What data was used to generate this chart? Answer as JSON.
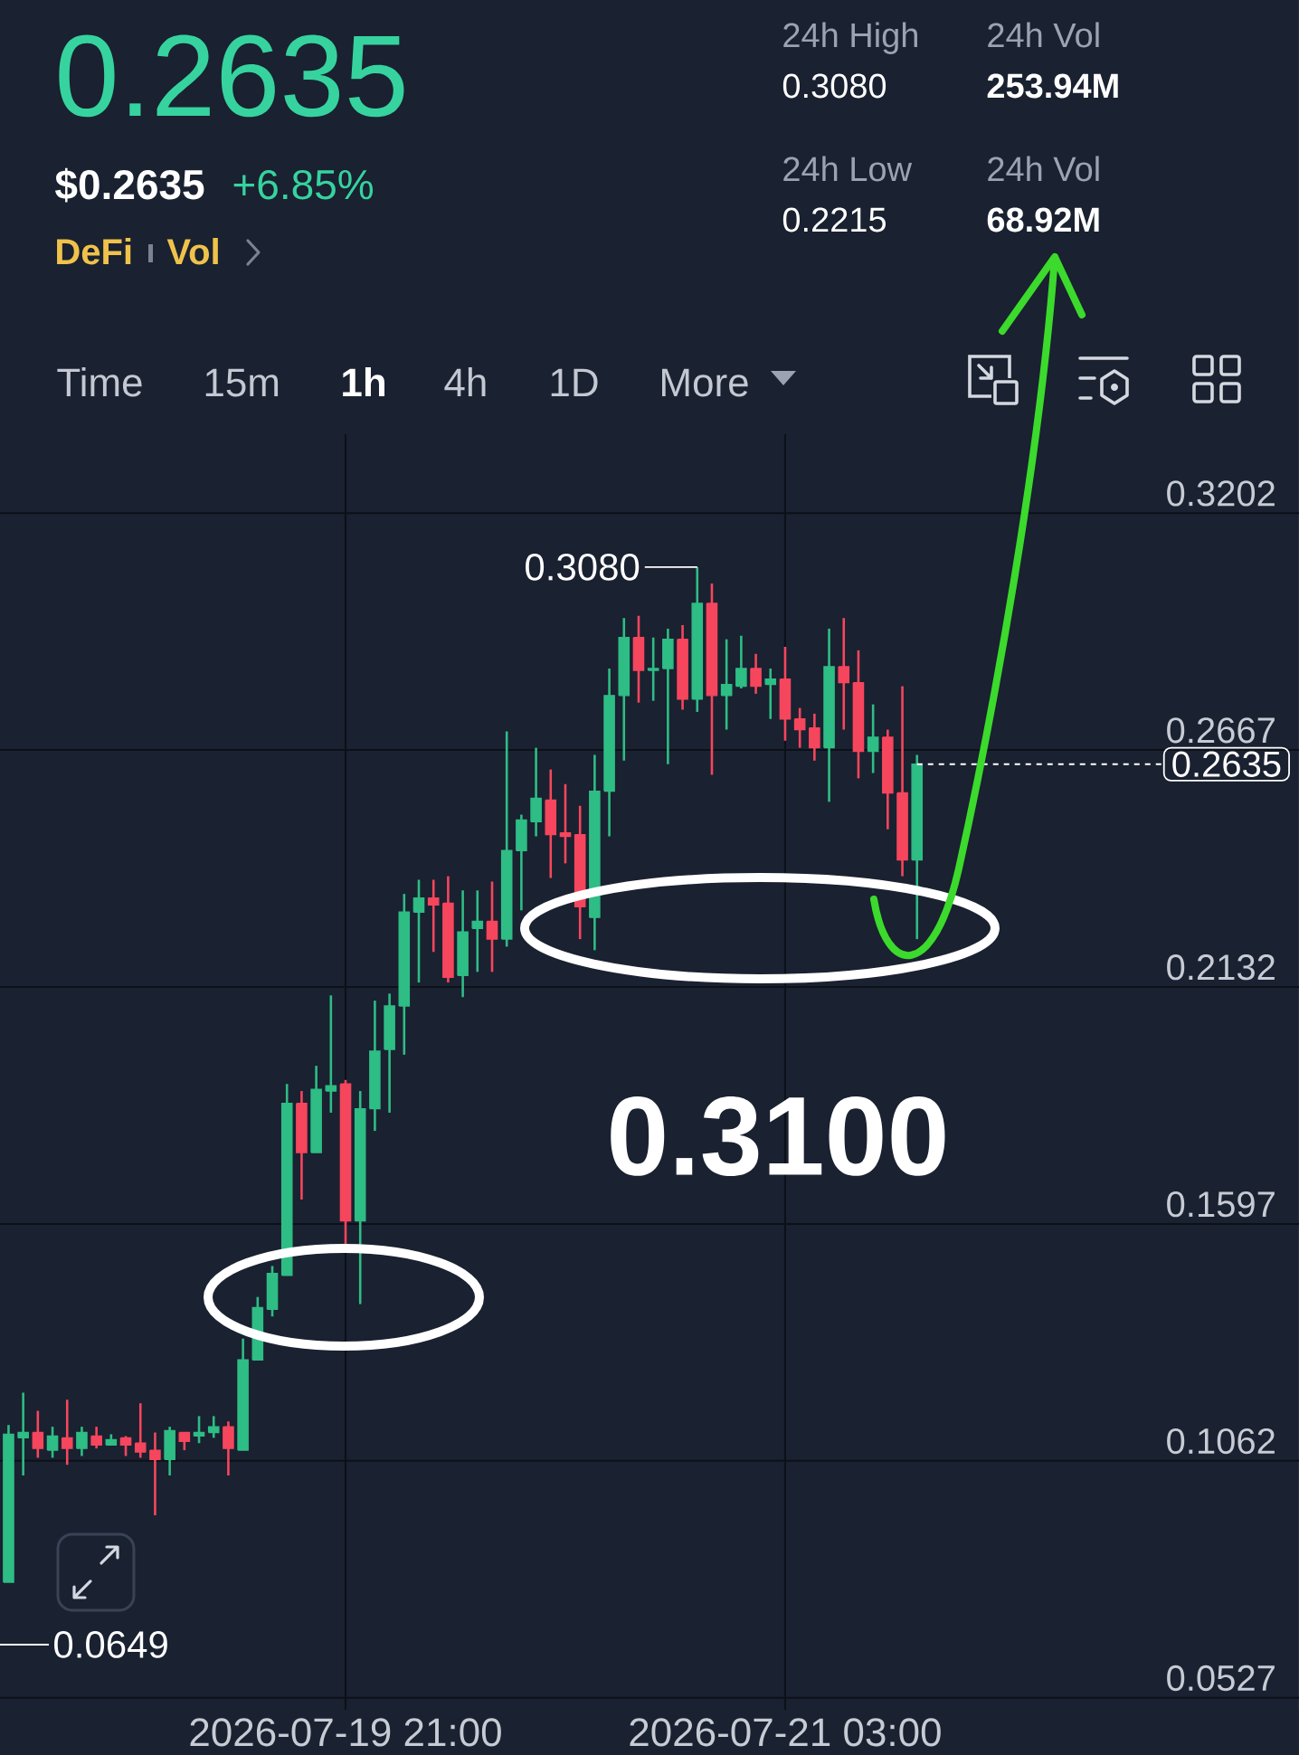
{
  "chart_data": {
    "type": "candlestick",
    "title": "0.2635",
    "x": [
      "2026-07-18T22:00",
      "2026-07-18T23:00",
      "2026-07-19T00:00",
      "2026-07-19T01:00",
      "2026-07-19T02:00",
      "2026-07-19T03:00",
      "2026-07-19T04:00",
      "2026-07-19T05:00",
      "2026-07-19T06:00",
      "2026-07-19T07:00",
      "2026-07-19T08:00",
      "2026-07-19T09:00",
      "2026-07-19T10:00",
      "2026-07-19T11:00",
      "2026-07-19T12:00",
      "2026-07-19T13:00",
      "2026-07-19T14:00",
      "2026-07-19T15:00",
      "2026-07-19T16:00",
      "2026-07-19T17:00",
      "2026-07-19T18:00",
      "2026-07-19T19:00",
      "2026-07-19T20:00",
      "2026-07-19T21:00",
      "2026-07-19T22:00",
      "2026-07-19T23:00",
      "2026-07-20T00:00",
      "2026-07-20T01:00",
      "2026-07-20T02:00",
      "2026-07-20T03:00",
      "2026-07-20T04:00",
      "2026-07-20T05:00",
      "2026-07-20T06:00",
      "2026-07-20T07:00",
      "2026-07-20T08:00",
      "2026-07-20T09:00",
      "2026-07-20T10:00",
      "2026-07-20T11:00",
      "2026-07-20T12:00",
      "2026-07-20T13:00",
      "2026-07-20T14:00",
      "2026-07-20T15:00",
      "2026-07-20T16:00",
      "2026-07-20T17:00",
      "2026-07-20T18:00",
      "2026-07-20T19:00",
      "2026-07-20T20:00",
      "2026-07-20T21:00",
      "2026-07-20T22:00",
      "2026-07-20T23:00",
      "2026-07-21T00:00",
      "2026-07-21T01:00",
      "2026-07-21T02:00",
      "2026-07-21T03:00",
      "2026-07-21T04:00",
      "2026-07-21T05:00",
      "2026-07-21T06:00",
      "2026-07-21T07:00",
      "2026-07-21T08:00",
      "2026-07-21T09:00",
      "2026-07-21T10:00",
      "2026-07-21T11:00",
      "2026-07-21T12:00"
    ],
    "ohlc": [
      [
        0.0788,
        0.1143,
        0.0788,
        0.1122
      ],
      [
        0.1114,
        0.1216,
        0.1029,
        0.1126
      ],
      [
        0.1126,
        0.1175,
        0.1069,
        0.109
      ],
      [
        0.1086,
        0.1139,
        0.1069,
        0.1118
      ],
      [
        0.1114,
        0.12,
        0.1053,
        0.109
      ],
      [
        0.109,
        0.1139,
        0.1073,
        0.1126
      ],
      [
        0.1118,
        0.1139,
        0.109,
        0.1098
      ],
      [
        0.1098,
        0.1122,
        0.1098,
        0.111
      ],
      [
        0.1114,
        0.1118,
        0.1073,
        0.1098
      ],
      [
        0.1102,
        0.1192,
        0.1069,
        0.1082
      ],
      [
        0.1086,
        0.1126,
        0.0939,
        0.1065
      ],
      [
        0.1065,
        0.1139,
        0.1029,
        0.113
      ],
      [
        0.1126,
        0.1126,
        0.1086,
        0.1106
      ],
      [
        0.1118,
        0.1163,
        0.1102,
        0.1126
      ],
      [
        0.1126,
        0.1163,
        0.1114,
        0.1139
      ],
      [
        0.1139,
        0.1151,
        0.1029,
        0.109
      ],
      [
        0.1086,
        0.1338,
        0.1086,
        0.129
      ],
      [
        0.129,
        0.1432,
        0.129,
        0.1408
      ],
      [
        0.1404,
        0.1502,
        0.1388,
        0.1485
      ],
      [
        0.1481,
        0.1913,
        0.1481,
        0.1869
      ],
      [
        0.1869,
        0.1897,
        0.1652,
        0.1758
      ],
      [
        0.1758,
        0.1954,
        0.1758,
        0.1901
      ],
      [
        0.1897,
        0.2113,
        0.1848,
        0.1909
      ],
      [
        0.1913,
        0.1922,
        0.1551,
        0.1604
      ],
      [
        0.1604,
        0.1897,
        0.1416,
        0.1857
      ],
      [
        0.1857,
        0.2101,
        0.1807,
        0.1987
      ],
      [
        0.1991,
        0.2117,
        0.1848,
        0.2089
      ],
      [
        0.2089,
        0.2342,
        0.1979,
        0.2301
      ],
      [
        0.2301,
        0.2374,
        0.2142,
        0.2333
      ],
      [
        0.2333,
        0.2374,
        0.2211,
        0.2317
      ],
      [
        0.2321,
        0.2382,
        0.2142,
        0.2154
      ],
      [
        0.2158,
        0.235,
        0.2109,
        0.2256
      ],
      [
        0.2264,
        0.235,
        0.2166,
        0.228
      ],
      [
        0.228,
        0.237,
        0.2166,
        0.224
      ],
      [
        0.224,
        0.2709,
        0.2223,
        0.244
      ],
      [
        0.244,
        0.2521,
        0.2305,
        0.2509
      ],
      [
        0.2505,
        0.2672,
        0.2472,
        0.2558
      ],
      [
        0.2554,
        0.2623,
        0.2378,
        0.2476
      ],
      [
        0.248,
        0.259,
        0.2411,
        0.2472
      ],
      [
        0.2476,
        0.2541,
        0.224,
        0.2313
      ],
      [
        0.2289,
        0.2656,
        0.2215,
        0.2574
      ],
      [
        0.2574,
        0.2851,
        0.2472,
        0.279
      ],
      [
        0.279,
        0.2965,
        0.2643,
        0.2921
      ],
      [
        0.2921,
        0.297,
        0.2774,
        0.2847
      ],
      [
        0.2847,
        0.2921,
        0.2778,
        0.2851
      ],
      [
        0.2851,
        0.2941,
        0.2635,
        0.2917
      ],
      [
        0.2917,
        0.2949,
        0.2758,
        0.2782
      ],
      [
        0.2782,
        0.308,
        0.2753,
        0.2998
      ],
      [
        0.2998,
        0.3043,
        0.2611,
        0.279
      ],
      [
        0.279,
        0.2917,
        0.2713,
        0.2815
      ],
      [
        0.2811,
        0.2925,
        0.2806,
        0.2851
      ],
      [
        0.2851,
        0.2884,
        0.2794,
        0.2811
      ],
      [
        0.2815,
        0.2851,
        0.2737,
        0.2827
      ],
      [
        0.2827,
        0.29,
        0.2688,
        0.2737
      ],
      [
        0.2737,
        0.2762,
        0.2672,
        0.2713
      ],
      [
        0.2717,
        0.2749,
        0.2643,
        0.2672
      ],
      [
        0.2672,
        0.2941,
        0.255,
        0.2855
      ],
      [
        0.2855,
        0.2965,
        0.2713,
        0.2819
      ],
      [
        0.2819,
        0.2892,
        0.2603,
        0.2664
      ],
      [
        0.2664,
        0.277,
        0.2615,
        0.2696
      ],
      [
        0.2696,
        0.2713,
        0.2488,
        0.257
      ],
      [
        0.257,
        0.2811,
        0.2382,
        0.2419
      ],
      [
        0.2419,
        0.2656,
        0.224,
        0.2635
      ]
    ],
    "colors": [
      "#2ebd85",
      "#2ebd85",
      "#f6465d",
      "#2ebd85",
      "#f6465d",
      "#2ebd85",
      "#f6465d",
      "#2ebd85",
      "#f6465d",
      "#f6465d",
      "#f6465d",
      "#2ebd85",
      "#f6465d",
      "#2ebd85",
      "#2ebd85",
      "#f6465d",
      "#2ebd85",
      "#2ebd85",
      "#2ebd85",
      "#2ebd85",
      "#f6465d",
      "#2ebd85",
      "#2ebd85",
      "#f6465d",
      "#2ebd85",
      "#2ebd85",
      "#2ebd85",
      "#2ebd85",
      "#2ebd85",
      "#f6465d",
      "#f6465d",
      "#2ebd85",
      "#2ebd85",
      "#f6465d",
      "#2ebd85",
      "#2ebd85",
      "#2ebd85",
      "#f6465d",
      "#f6465d",
      "#f6465d",
      "#2ebd85",
      "#2ebd85",
      "#2ebd85",
      "#f6465d",
      "#2ebd85",
      "#2ebd85",
      "#f6465d",
      "#2ebd85",
      "#f6465d",
      "#2ebd85",
      "#2ebd85",
      "#f6465d",
      "#2ebd85",
      "#f6465d",
      "#f6465d",
      "#f6465d",
      "#2ebd85",
      "#f6465d",
      "#f6465d",
      "#2ebd85",
      "#f6465d",
      "#f6465d",
      "#2ebd85"
    ],
    "xlim": [
      "2026-07-18T21:25",
      "2026-07-22T14:04"
    ],
    "xticks": [
      {
        "value": "2026-07-19T21:00",
        "label": "2026-07-19 21:00"
      },
      {
        "value": "2026-07-21T03:00",
        "label": "2026-07-21 03:00"
      }
    ],
    "ylim": [
      0.05,
      0.338
    ],
    "yticks": [
      0.0527,
      0.1062,
      0.1597,
      0.2132,
      0.2667,
      0.3202
    ],
    "grid": true,
    "ref_lines": [
      {
        "axis": "y",
        "value": 0.2635,
        "label": "0.2635",
        "line_style": "dashed",
        "color": "#ffffff"
      }
    ],
    "annotations": [
      "$0.2635",
      "+6.85%",
      "DeFi",
      "Vol",
      "24h High",
      "0.3080",
      "24h Vol",
      "253.94M",
      "24h Low",
      "0.2215",
      "24h Vol",
      "68.92M",
      "Time",
      "15m",
      "1h",
      "4h",
      "1D",
      "More",
      {
        "text": "0.3080",
        "x": "2026-07-20T21:00",
        "y": 0.308
      },
      "0.0649",
      "0.3100"
    ]
  }
}
